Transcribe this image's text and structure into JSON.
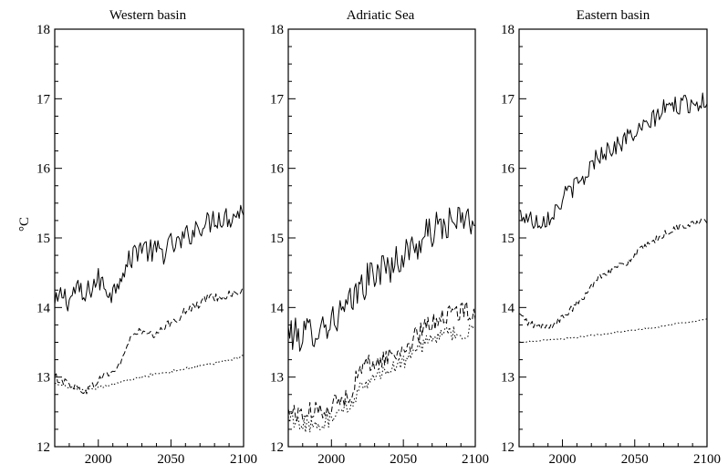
{
  "figure": {
    "ylabel": "°C"
  },
  "chart_data": [
    {
      "type": "line",
      "title": "Western basin",
      "xlim": [
        1970,
        2100
      ],
      "ylim": [
        12,
        18
      ],
      "xticks": [
        2000,
        2050,
        2100
      ],
      "yticks": [
        12,
        13,
        14,
        15,
        16,
        17,
        18
      ],
      "ylabel": "°C",
      "series": [
        {
          "style": "solid",
          "x": [
            1970,
            1975,
            1980,
            1985,
            1990,
            1995,
            2000,
            2005,
            2010,
            2015,
            2020,
            2025,
            2030,
            2035,
            2040,
            2045,
            2050,
            2055,
            2060,
            2065,
            2070,
            2075,
            2080,
            2085,
            2090,
            2095,
            2100
          ],
          "y": [
            14.0,
            14.2,
            14.1,
            14.3,
            14.1,
            14.3,
            14.4,
            14.3,
            14.2,
            14.5,
            14.6,
            14.8,
            14.9,
            14.8,
            14.8,
            14.8,
            14.9,
            14.9,
            15.0,
            15.1,
            15.2,
            15.2,
            15.3,
            15.3,
            15.3,
            15.35,
            15.4
          ],
          "noise": 0.18
        },
        {
          "style": "dashed",
          "x": [
            1970,
            1975,
            1980,
            1985,
            1990,
            1995,
            2000,
            2005,
            2010,
            2015,
            2020,
            2025,
            2030,
            2035,
            2040,
            2045,
            2050,
            2055,
            2060,
            2065,
            2070,
            2075,
            2080,
            2085,
            2090,
            2095,
            2100
          ],
          "y": [
            13.0,
            12.95,
            12.9,
            12.85,
            12.8,
            12.85,
            12.95,
            13.05,
            13.05,
            13.2,
            13.45,
            13.65,
            13.65,
            13.6,
            13.6,
            13.7,
            13.8,
            13.85,
            13.95,
            14.0,
            14.05,
            14.15,
            14.15,
            14.15,
            14.2,
            14.2,
            14.25
          ],
          "noise": 0.06
        },
        {
          "style": "dotted",
          "x": [
            1970,
            1980,
            1990,
            2000,
            2010,
            2020,
            2030,
            2040,
            2050,
            2060,
            2070,
            2080,
            2090,
            2100
          ],
          "y": [
            12.9,
            12.85,
            12.8,
            12.85,
            12.9,
            12.95,
            13.0,
            13.05,
            13.08,
            13.12,
            13.17,
            13.2,
            13.25,
            13.3
          ],
          "noise": 0.02
        }
      ]
    },
    {
      "type": "line",
      "title": "Adriatic Sea",
      "xlim": [
        1970,
        2100
      ],
      "ylim": [
        12,
        18
      ],
      "xticks": [
        2000,
        2050,
        2100
      ],
      "yticks": [
        12,
        13,
        14,
        15,
        16,
        17,
        18
      ],
      "series": [
        {
          "style": "solid",
          "x": [
            1970,
            1975,
            1980,
            1985,
            1990,
            1995,
            2000,
            2005,
            2010,
            2015,
            2020,
            2025,
            2030,
            2035,
            2040,
            2045,
            2050,
            2055,
            2060,
            2065,
            2070,
            2075,
            2080,
            2085,
            2090,
            2095,
            2100
          ],
          "y": [
            13.65,
            13.6,
            13.6,
            13.65,
            13.7,
            13.75,
            13.8,
            13.9,
            13.95,
            14.1,
            14.3,
            14.4,
            14.5,
            14.55,
            14.6,
            14.65,
            14.75,
            14.85,
            14.9,
            15.0,
            15.1,
            15.15,
            15.2,
            15.2,
            15.25,
            15.25,
            15.25
          ],
          "noise": 0.25
        },
        {
          "style": "dashed",
          "x": [
            1970,
            1975,
            1980,
            1985,
            1990,
            1995,
            2000,
            2005,
            2010,
            2015,
            2020,
            2025,
            2030,
            2035,
            2040,
            2045,
            2050,
            2055,
            2060,
            2065,
            2070,
            2075,
            2080,
            2085,
            2090,
            2095,
            2100
          ],
          "y": [
            12.5,
            12.5,
            12.45,
            12.5,
            12.5,
            12.55,
            12.6,
            12.65,
            12.7,
            12.85,
            13.1,
            13.2,
            13.2,
            13.25,
            13.3,
            13.35,
            13.4,
            13.5,
            13.6,
            13.7,
            13.8,
            13.85,
            13.9,
            13.9,
            13.95,
            13.95,
            13.95
          ],
          "noise": 0.14
        },
        {
          "style": "dotted",
          "x": [
            1970,
            1975,
            1980,
            1985,
            1990,
            1995,
            2000,
            2005,
            2010,
            2015,
            2020,
            2025,
            2030,
            2035,
            2040,
            2045,
            2050,
            2055,
            2060,
            2065,
            2070,
            2075,
            2080,
            2085,
            2090,
            2095,
            2100
          ],
          "y": [
            12.4,
            12.35,
            12.3,
            12.3,
            12.3,
            12.35,
            12.4,
            12.45,
            12.55,
            12.65,
            12.85,
            12.95,
            13.0,
            13.05,
            13.1,
            13.15,
            13.2,
            13.3,
            13.4,
            13.5,
            13.55,
            13.6,
            13.6,
            13.65,
            13.65,
            13.65,
            13.65
          ],
          "noise": 0.12
        }
      ]
    },
    {
      "type": "line",
      "title": "Eastern basin",
      "xlim": [
        1970,
        2100
      ],
      "ylim": [
        12,
        18
      ],
      "xticks": [
        2000,
        2050,
        2100
      ],
      "yticks": [
        12,
        13,
        14,
        15,
        16,
        17,
        18
      ],
      "series": [
        {
          "style": "solid",
          "x": [
            1970,
            1975,
            1980,
            1985,
            1990,
            1995,
            2000,
            2005,
            2010,
            2015,
            2020,
            2025,
            2030,
            2035,
            2040,
            2045,
            2050,
            2055,
            2060,
            2065,
            2070,
            2075,
            2080,
            2085,
            2090,
            2095,
            2100
          ],
          "y": [
            15.35,
            15.3,
            15.25,
            15.25,
            15.3,
            15.4,
            15.55,
            15.7,
            15.75,
            15.85,
            16.05,
            16.2,
            16.25,
            16.3,
            16.35,
            16.45,
            16.5,
            16.55,
            16.65,
            16.75,
            16.85,
            16.9,
            16.9,
            16.92,
            16.95,
            16.95,
            16.95
          ],
          "noise": 0.14
        },
        {
          "style": "dashed",
          "x": [
            1970,
            1975,
            1980,
            1985,
            1990,
            1995,
            2000,
            2005,
            2010,
            2015,
            2020,
            2025,
            2030,
            2035,
            2040,
            2045,
            2050,
            2055,
            2060,
            2065,
            2070,
            2075,
            2080,
            2085,
            2090,
            2095,
            2100
          ],
          "y": [
            13.9,
            13.8,
            13.75,
            13.72,
            13.72,
            13.78,
            13.85,
            13.95,
            14.05,
            14.15,
            14.3,
            14.45,
            14.5,
            14.55,
            14.6,
            14.65,
            14.75,
            14.85,
            14.9,
            14.98,
            15.05,
            15.1,
            15.15,
            15.18,
            15.2,
            15.22,
            15.25
          ],
          "noise": 0.05
        },
        {
          "style": "dotted",
          "x": [
            1970,
            1980,
            1990,
            2000,
            2010,
            2020,
            2030,
            2040,
            2050,
            2060,
            2070,
            2080,
            2090,
            2100
          ],
          "y": [
            13.5,
            13.52,
            13.53,
            13.55,
            13.57,
            13.6,
            13.62,
            13.65,
            13.68,
            13.7,
            13.73,
            13.77,
            13.8,
            13.83
          ],
          "noise": 0.01
        }
      ]
    }
  ]
}
